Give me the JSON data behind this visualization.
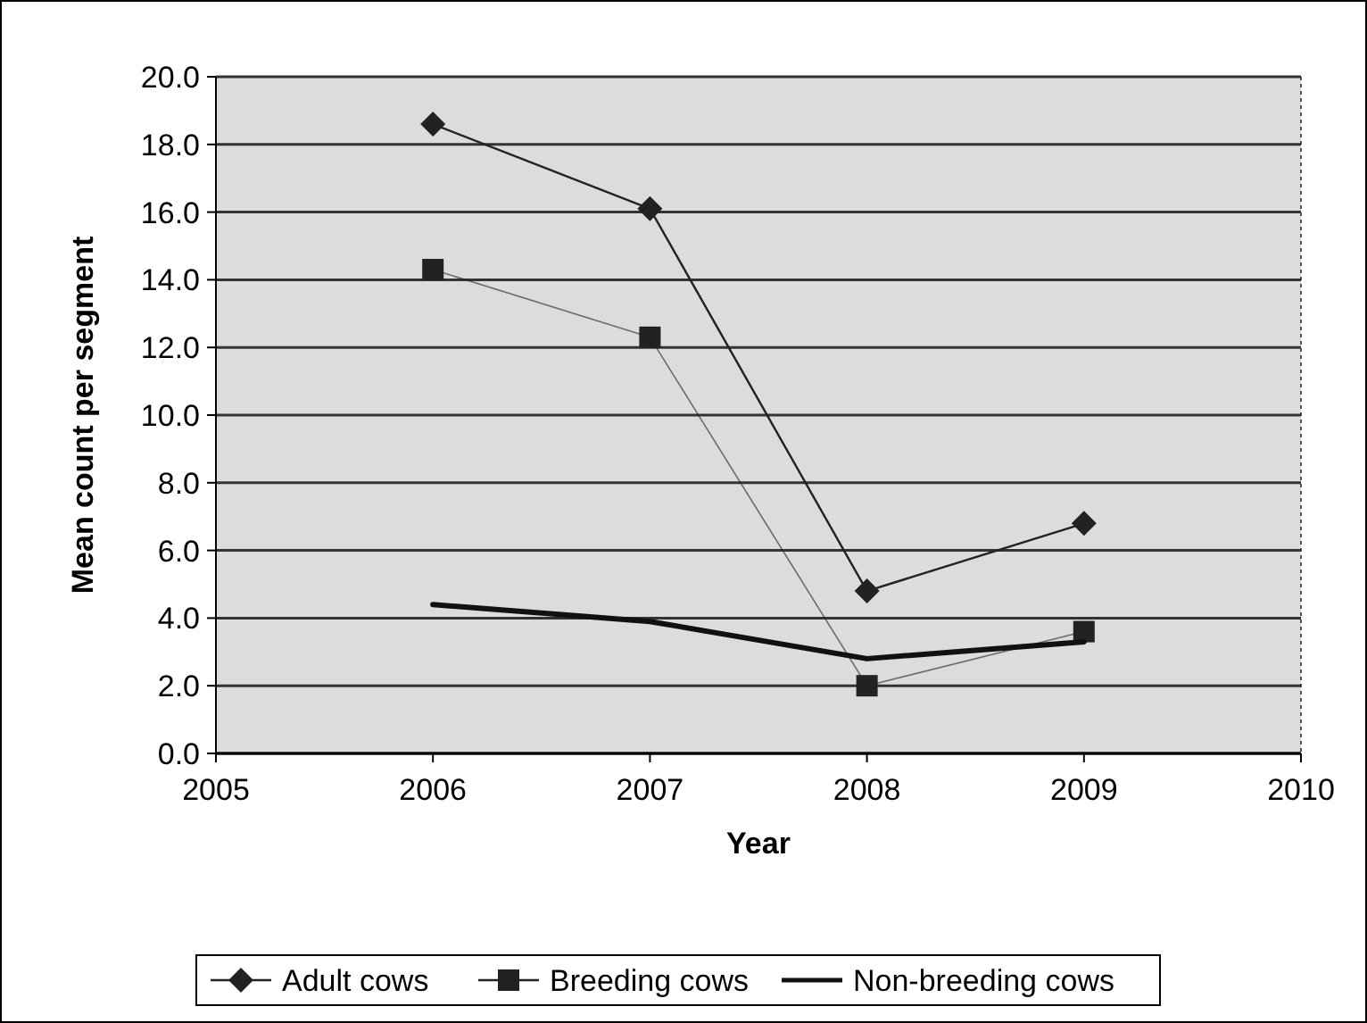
{
  "chart_data": {
    "type": "line",
    "xlabel": "Year",
    "ylabel": "Mean count per segment",
    "x": [
      2006,
      2007,
      2008,
      2009
    ],
    "series": [
      {
        "name": "Adult cows",
        "color": "#222222",
        "values": [
          18.6,
          16.1,
          4.8,
          6.8
        ],
        "marker": "diamond",
        "line_style": "solid"
      },
      {
        "name": "Breeding cows",
        "color": "#222222",
        "values": [
          14.3,
          12.3,
          2.0,
          3.6
        ],
        "marker": "square",
        "line_style": "solid"
      },
      {
        "name": "Non-breeding cows",
        "color": "#111111",
        "values": [
          4.4,
          3.9,
          2.8,
          3.3
        ],
        "marker": "none",
        "line_style": "solid"
      }
    ],
    "xlim": [
      2005,
      2010
    ],
    "xticks": [
      2005,
      2006,
      2007,
      2008,
      2009,
      2010
    ],
    "ylim": [
      0,
      20
    ],
    "yticks": [
      {
        "value": 0,
        "label": "0.0"
      },
      {
        "value": 2,
        "label": "2.0"
      },
      {
        "value": 4,
        "label": "4.0"
      },
      {
        "value": 6,
        "label": "6.0"
      },
      {
        "value": 8,
        "label": "8.0"
      },
      {
        "value": 10,
        "label": "10.0"
      },
      {
        "value": 12,
        "label": "12.0"
      },
      {
        "value": 14,
        "label": "14.0"
      },
      {
        "value": 16,
        "label": "16.0"
      },
      {
        "value": 18,
        "label": "18.0"
      },
      {
        "value": 20,
        "label": "20.0"
      }
    ],
    "grid": "y",
    "legend": "bottom"
  }
}
